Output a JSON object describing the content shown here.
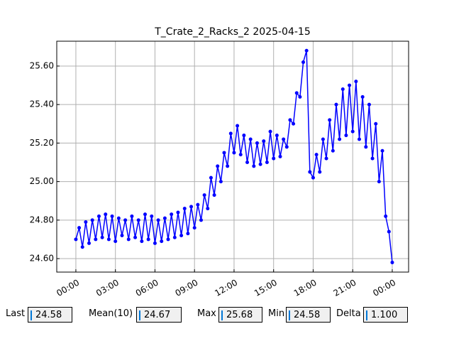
{
  "chart_data": {
    "type": "line",
    "title": "T_Crate_2_Racks_2 2025-04-15",
    "x": [
      0,
      0.25,
      0.5,
      0.75,
      1,
      1.25,
      1.5,
      1.75,
      2,
      2.25,
      2.5,
      2.75,
      3,
      3.25,
      3.5,
      3.75,
      4,
      4.25,
      4.5,
      4.75,
      5,
      5.25,
      5.5,
      5.75,
      6,
      6.25,
      6.5,
      6.75,
      7,
      7.25,
      7.5,
      7.75,
      8,
      8.25,
      8.5,
      8.75,
      9,
      9.25,
      9.5,
      9.75,
      10,
      10.25,
      10.5,
      10.75,
      11,
      11.25,
      11.5,
      11.75,
      12,
      12.25,
      12.5,
      12.75,
      13,
      13.25,
      13.5,
      13.75,
      14,
      14.25,
      14.5,
      14.75,
      15,
      15.25,
      15.5,
      15.75,
      16,
      16.25,
      16.5,
      16.75,
      17,
      17.25,
      17.5,
      17.75,
      18,
      18.25,
      18.5,
      18.75,
      19,
      19.25,
      19.5,
      19.75,
      20,
      20.25,
      20.5,
      20.75,
      21,
      21.25,
      21.5,
      21.75,
      22,
      22.25,
      22.5,
      22.75,
      23,
      23.25,
      23.5,
      23.75,
      24
    ],
    "values": [
      24.7,
      24.76,
      24.66,
      24.79,
      24.68,
      24.8,
      24.7,
      24.82,
      24.71,
      24.83,
      24.7,
      24.82,
      24.69,
      24.81,
      24.72,
      24.8,
      24.7,
      24.82,
      24.71,
      24.8,
      24.69,
      24.83,
      24.7,
      24.82,
      24.68,
      24.8,
      24.69,
      24.81,
      24.7,
      24.83,
      24.71,
      24.84,
      24.72,
      24.86,
      24.73,
      24.87,
      24.76,
      24.88,
      24.8,
      24.93,
      24.86,
      25.02,
      24.93,
      25.08,
      25.0,
      25.15,
      25.08,
      25.25,
      25.15,
      25.29,
      25.14,
      25.24,
      25.1,
      25.22,
      25.08,
      25.2,
      25.09,
      25.21,
      25.1,
      25.26,
      25.12,
      25.24,
      25.13,
      25.22,
      25.18,
      25.32,
      25.3,
      25.46,
      25.44,
      25.62,
      25.68,
      25.05,
      25.02,
      25.14,
      25.05,
      25.22,
      25.12,
      25.32,
      25.16,
      25.4,
      25.22,
      25.48,
      25.24,
      25.5,
      25.26,
      25.52,
      25.22,
      25.44,
      25.18,
      25.4,
      25.12,
      25.3,
      25.0,
      25.16,
      24.82,
      24.74,
      24.58
    ],
    "color": "#0000ff",
    "xlim": [
      -1.45,
      25.24
    ],
    "xticks": [
      {
        "value": 0,
        "label": "00:00"
      },
      {
        "value": 3,
        "label": "03:00"
      },
      {
        "value": 6,
        "label": "06:00"
      },
      {
        "value": 9,
        "label": "09:00"
      },
      {
        "value": 12,
        "label": "12:00"
      },
      {
        "value": 15,
        "label": "15:00"
      },
      {
        "value": 18,
        "label": "18:00"
      },
      {
        "value": 21,
        "label": "21:00"
      },
      {
        "value": 24,
        "label": "00:00"
      }
    ],
    "ylim": [
      24.53,
      25.729
    ],
    "yticks": [
      {
        "value": 24.6,
        "label": "24.60"
      },
      {
        "value": 24.8,
        "label": "24.80"
      },
      {
        "value": 25.0,
        "label": "25.00"
      },
      {
        "value": 25.2,
        "label": "25.20"
      },
      {
        "value": 25.4,
        "label": "25.40"
      },
      {
        "value": 25.6,
        "label": "25.60"
      }
    ],
    "grid": true
  },
  "stats": [
    {
      "label": "Last",
      "value": "24.58"
    },
    {
      "label": "Mean(10)",
      "value": "24.67"
    },
    {
      "label": "Max",
      "value": "25.68"
    },
    {
      "label": "Min",
      "value": "24.58"
    },
    {
      "label": "Delta",
      "value": "1.100"
    }
  ]
}
